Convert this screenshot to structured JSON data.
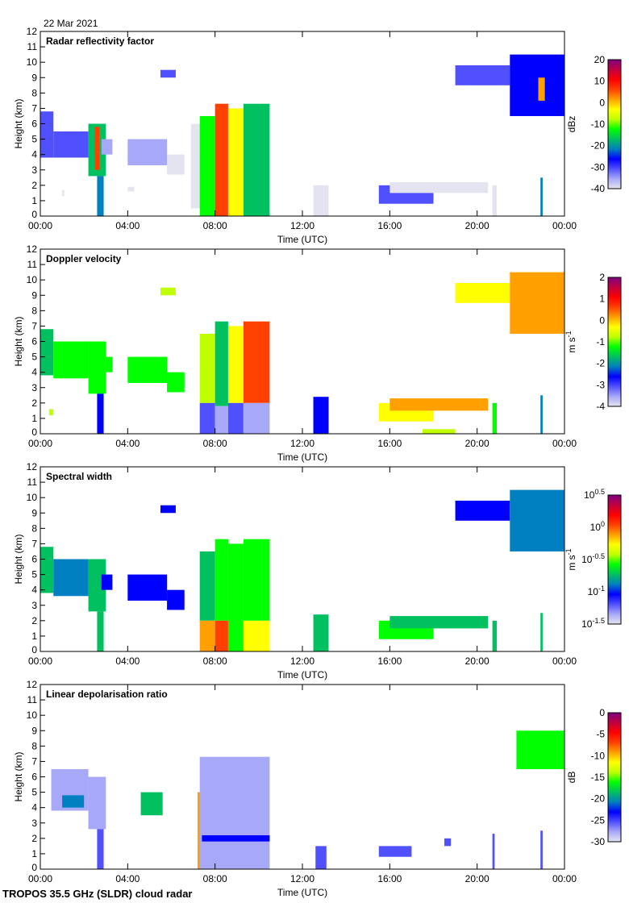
{
  "date_label": "22 Mar 2021",
  "footer": "TROPOS 35.5 GHz (SLDR) cloud radar",
  "colormap": [
    "#e4e4f0",
    "#a8a8f8",
    "#5050ff",
    "#0000ff",
    "#0080c0",
    "#00c060",
    "#00ff00",
    "#c0ff00",
    "#ffff00",
    "#ffa000",
    "#ff4000",
    "#ff0000",
    "#c00040",
    "#800080"
  ],
  "chart_data": [
    {
      "type": "heatmap",
      "title": "Radar reflectivity factor",
      "xlabel": "Time (UTC)",
      "ylabel": "Height (km)",
      "xlim": [
        0,
        24
      ],
      "ylim": [
        0,
        12
      ],
      "x_ticks": [
        "00:00",
        "04:00",
        "08:00",
        "12:00",
        "16:00",
        "20:00",
        "00:00"
      ],
      "y_ticks": [
        "0",
        "1",
        "2",
        "3",
        "4",
        "5",
        "6",
        "7",
        "8",
        "9",
        "10",
        "11",
        "12"
      ],
      "colorbar": {
        "unit": "dBz",
        "unit_exp": "",
        "range": [
          -40,
          20
        ],
        "ticks": [
          {
            "base": "20",
            "exp": ""
          },
          {
            "base": "10",
            "exp": ""
          },
          {
            "base": "0",
            "exp": ""
          },
          {
            "base": "-10",
            "exp": ""
          },
          {
            "base": "-20",
            "exp": ""
          },
          {
            "base": "-30",
            "exp": ""
          },
          {
            "base": "-40",
            "exp": ""
          }
        ]
      },
      "patches": [
        [
          0,
          0.6,
          3.8,
          6.8,
          -30
        ],
        [
          0.6,
          2.2,
          3.8,
          5.5,
          -32
        ],
        [
          2.2,
          3.0,
          2.6,
          6.0,
          -18
        ],
        [
          2.5,
          2.7,
          3,
          5.8,
          5
        ],
        [
          2.6,
          2.9,
          0,
          2.6,
          -22
        ],
        [
          2.8,
          3.3,
          4.0,
          5.0,
          -34
        ],
        [
          1.0,
          1.1,
          1.3,
          1.7,
          -40
        ],
        [
          4.0,
          5.8,
          3.3,
          5.0,
          -35
        ],
        [
          5.8,
          6.6,
          2.7,
          4.0,
          -38
        ],
        [
          5.5,
          6.2,
          9.0,
          9.5,
          -32
        ],
        [
          4.0,
          4.3,
          1.6,
          1.9,
          -40
        ],
        [
          6.9,
          7.3,
          0.5,
          6.0,
          -40
        ],
        [
          7.3,
          8.0,
          0,
          6.5,
          -10
        ],
        [
          8.0,
          8.6,
          0,
          7.3,
          5
        ],
        [
          8.6,
          9.3,
          0,
          7.0,
          -5
        ],
        [
          9.3,
          10.5,
          0,
          7.3,
          -15
        ],
        [
          12.5,
          13.2,
          0,
          2.0,
          -40
        ],
        [
          15.5,
          18.0,
          0.8,
          2.0,
          -32
        ],
        [
          16.0,
          20.5,
          1.5,
          2.2,
          -40
        ],
        [
          19.0,
          21.5,
          8.5,
          9.8,
          -30
        ],
        [
          21.5,
          24,
          6.5,
          10.5,
          -28
        ],
        [
          22.8,
          23.1,
          7.5,
          9.0,
          0
        ],
        [
          22.9,
          23.0,
          0,
          2.5,
          -20
        ],
        [
          20.7,
          20.9,
          0,
          2.0,
          -40
        ]
      ]
    },
    {
      "type": "heatmap",
      "title": "Doppler velocity",
      "xlabel": "Time (UTC)",
      "ylabel": "Height (km)",
      "xlim": [
        0,
        24
      ],
      "ylim": [
        0,
        12
      ],
      "x_ticks": [
        "00:00",
        "04:00",
        "08:00",
        "12:00",
        "16:00",
        "20:00",
        "00:00"
      ],
      "y_ticks": [
        "0",
        "1",
        "2",
        "3",
        "4",
        "5",
        "6",
        "7",
        "8",
        "9",
        "10",
        "11",
        "12"
      ],
      "colorbar": {
        "unit": "m s",
        "unit_exp": "-1",
        "range": [
          -4,
          2
        ],
        "ticks": [
          {
            "base": "2",
            "exp": ""
          },
          {
            "base": "1",
            "exp": ""
          },
          {
            "base": "0",
            "exp": ""
          },
          {
            "base": "-1",
            "exp": ""
          },
          {
            "base": "-2",
            "exp": ""
          },
          {
            "base": "-3",
            "exp": ""
          },
          {
            "base": "-4",
            "exp": ""
          }
        ]
      },
      "patches": [
        [
          0,
          0.6,
          3.8,
          6.8,
          -1.5
        ],
        [
          0.6,
          2.2,
          3.6,
          6.0,
          -1.0
        ],
        [
          2.2,
          3.0,
          2.6,
          6.0,
          -1.3
        ],
        [
          2.6,
          2.9,
          0,
          2.6,
          -2.8
        ],
        [
          2.8,
          3.3,
          4.0,
          5.0,
          -1.0
        ],
        [
          0.4,
          0.6,
          1.2,
          1.6,
          -0.8
        ],
        [
          4.0,
          5.8,
          3.3,
          5.0,
          -1.2
        ],
        [
          5.8,
          6.6,
          2.7,
          4.0,
          -1.0
        ],
        [
          5.5,
          6.2,
          9.0,
          9.5,
          -0.8
        ],
        [
          7.3,
          8.0,
          2.0,
          6.5,
          -0.8
        ],
        [
          7.3,
          8.0,
          0,
          2.0,
          -3.0
        ],
        [
          8.0,
          8.6,
          1.8,
          7.3,
          -1.5
        ],
        [
          8.0,
          8.6,
          0,
          1.8,
          -3.5
        ],
        [
          8.6,
          9.3,
          2.0,
          7.0,
          -0.5
        ],
        [
          8.6,
          9.3,
          0,
          2.0,
          -3.3
        ],
        [
          9.3,
          10.5,
          2.0,
          7.3,
          0.5
        ],
        [
          9.3,
          10.5,
          0,
          2.0,
          -3.5
        ],
        [
          12.5,
          13.2,
          0,
          2.4,
          -2.5
        ],
        [
          15.5,
          18.0,
          0.8,
          2.0,
          -0.3
        ],
        [
          16.0,
          20.5,
          1.5,
          2.3,
          0.2
        ],
        [
          19.0,
          21.5,
          8.5,
          9.8,
          -0.3
        ],
        [
          21.5,
          24,
          6.5,
          10.5,
          0.0
        ],
        [
          22.9,
          23.0,
          0,
          2.5,
          -2.0
        ],
        [
          20.7,
          20.9,
          0,
          2.0,
          -1.0
        ],
        [
          17.5,
          19.0,
          0,
          0.3,
          -0.8
        ]
      ]
    },
    {
      "type": "heatmap",
      "title": "Spectral width",
      "xlabel": "Time (UTC)",
      "ylabel": "Height (km)",
      "xlim": [
        0,
        24
      ],
      "ylim": [
        0,
        12
      ],
      "x_ticks": [
        "00:00",
        "04:00",
        "08:00",
        "12:00",
        "16:00",
        "20:00",
        "00:00"
      ],
      "y_ticks": [
        "0",
        "1",
        "2",
        "3",
        "4",
        "5",
        "6",
        "7",
        "8",
        "9",
        "10",
        "11",
        "12"
      ],
      "colorbar": {
        "unit": "m s",
        "unit_exp": "-1",
        "range": [
          -1.5,
          0.5
        ],
        "scale": "log10",
        "ticks": [
          {
            "base": "10",
            "exp": "0.5"
          },
          {
            "base": "10",
            "exp": "0"
          },
          {
            "base": "10",
            "exp": "-0.5"
          },
          {
            "base": "10",
            "exp": "-1"
          },
          {
            "base": "10",
            "exp": "-1.5"
          }
        ]
      },
      "patches": [
        [
          0,
          0.6,
          3.8,
          6.8,
          -0.8
        ],
        [
          0.6,
          2.2,
          3.6,
          6.0,
          -0.9
        ],
        [
          2.2,
          3.0,
          2.6,
          6.0,
          -0.7
        ],
        [
          2.6,
          2.9,
          0,
          2.6,
          -0.8
        ],
        [
          2.8,
          3.3,
          4.0,
          5.0,
          -1.0
        ],
        [
          4.0,
          5.8,
          3.3,
          5.0,
          -1.0
        ],
        [
          5.8,
          6.6,
          2.7,
          4.0,
          -1.1
        ],
        [
          5.5,
          6.2,
          9.0,
          9.5,
          -1.1
        ],
        [
          7.3,
          8.0,
          2.0,
          6.5,
          -0.8
        ],
        [
          7.3,
          8.0,
          0,
          2.0,
          -0.1
        ],
        [
          8.0,
          8.6,
          2.0,
          7.3,
          -0.6
        ],
        [
          8.0,
          8.6,
          0,
          2.0,
          0.0
        ],
        [
          8.6,
          9.3,
          0,
          7.0,
          -0.5
        ],
        [
          9.3,
          10.5,
          2.0,
          7.3,
          -0.6
        ],
        [
          9.3,
          10.5,
          0,
          2.0,
          -0.3
        ],
        [
          12.5,
          13.2,
          0,
          2.4,
          -0.7
        ],
        [
          15.5,
          18.0,
          0.8,
          2.0,
          -0.5
        ],
        [
          16.0,
          20.5,
          1.5,
          2.3,
          -0.8
        ],
        [
          19.0,
          21.5,
          8.5,
          9.8,
          -1.1
        ],
        [
          21.5,
          24,
          6.5,
          10.5,
          -0.9
        ],
        [
          22.9,
          23.0,
          0,
          2.5,
          -0.8
        ],
        [
          20.7,
          20.9,
          0,
          2.0,
          -0.8
        ]
      ]
    },
    {
      "type": "heatmap",
      "title": "Linear depolarisation ratio",
      "xlabel": "Time (UTC)",
      "ylabel": "Height (km)",
      "xlim": [
        0,
        24
      ],
      "ylim": [
        0,
        12
      ],
      "x_ticks": [
        "00:00",
        "04:00",
        "08:00",
        "12:00",
        "16:00",
        "20:00",
        "00:00"
      ],
      "y_ticks": [
        "0",
        "1",
        "2",
        "3",
        "4",
        "5",
        "6",
        "7",
        "8",
        "9",
        "10",
        "11",
        "12"
      ],
      "colorbar": {
        "unit": "dB",
        "unit_exp": "",
        "range": [
          -30,
          0
        ],
        "ticks": [
          {
            "base": "0",
            "exp": ""
          },
          {
            "base": "-5",
            "exp": ""
          },
          {
            "base": "-10",
            "exp": ""
          },
          {
            "base": "-15",
            "exp": ""
          },
          {
            "base": "-20",
            "exp": ""
          },
          {
            "base": "-25",
            "exp": ""
          },
          {
            "base": "-30",
            "exp": ""
          }
        ]
      },
      "patches": [
        [
          0.5,
          2.2,
          3.8,
          6.5,
          -27
        ],
        [
          1.0,
          2.0,
          4.0,
          4.8,
          -20
        ],
        [
          2.2,
          3.0,
          2.6,
          6.0,
          -27
        ],
        [
          2.6,
          2.9,
          0,
          2.6,
          -25
        ],
        [
          4.6,
          5.6,
          3.5,
          5.0,
          -18
        ],
        [
          7.2,
          7.4,
          0,
          5.0,
          -10
        ],
        [
          7.3,
          10.5,
          0,
          7.3,
          -28.5
        ],
        [
          7.4,
          10.5,
          1.8,
          2.2,
          -24
        ],
        [
          12.6,
          13.1,
          0,
          1.5,
          -25
        ],
        [
          15.5,
          17.0,
          0.8,
          1.5,
          -26
        ],
        [
          18.5,
          18.8,
          1.5,
          2.0,
          -26
        ],
        [
          20.7,
          20.8,
          0,
          2.3,
          -26
        ],
        [
          21.8,
          24,
          6.5,
          9.0,
          -16
        ],
        [
          22.9,
          23.0,
          0,
          2.5,
          -25
        ]
      ]
    }
  ]
}
